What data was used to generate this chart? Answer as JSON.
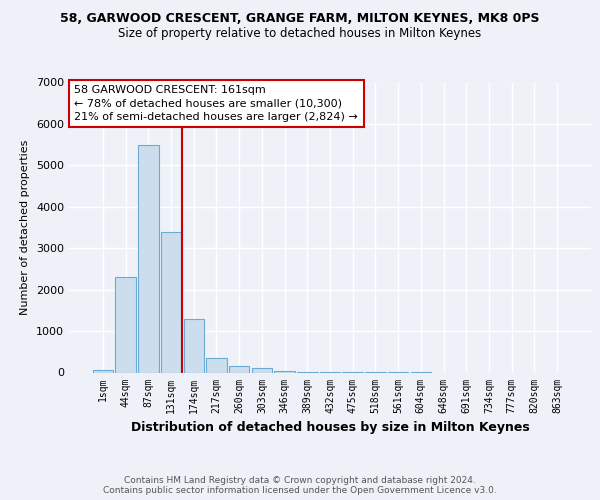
{
  "title": "58, GARWOOD CRESCENT, GRANGE FARM, MILTON KEYNES, MK8 0PS",
  "subtitle": "Size of property relative to detached houses in Milton Keynes",
  "xlabel": "Distribution of detached houses by size in Milton Keynes",
  "ylabel": "Number of detached properties",
  "bar_labels": [
    "1sqm",
    "44sqm",
    "87sqm",
    "131sqm",
    "174sqm",
    "217sqm",
    "260sqm",
    "303sqm",
    "346sqm",
    "389sqm",
    "432sqm",
    "475sqm",
    "518sqm",
    "561sqm",
    "604sqm",
    "648sqm",
    "691sqm",
    "734sqm",
    "777sqm",
    "820sqm",
    "863sqm"
  ],
  "bar_values": [
    50,
    2300,
    5500,
    3400,
    1300,
    350,
    150,
    100,
    30,
    10,
    5,
    3,
    2,
    1,
    1,
    0,
    0,
    0,
    0,
    0,
    0
  ],
  "bar_color": "#ccdded",
  "bar_edge_color": "#6aaad4",
  "background_color": "#eef2f8",
  "grid_color": "#ffffff",
  "red_line_x": 3.5,
  "annotation_text": "58 GARWOOD CRESCENT: 161sqm\n← 78% of detached houses are smaller (10,300)\n21% of semi-detached houses are larger (2,824) →",
  "annotation_box_color": "#ffffff",
  "annotation_box_edge": "#cc0000",
  "red_line_color": "#cc0000",
  "footer_text": "Contains HM Land Registry data © Crown copyright and database right 2024.\nContains public sector information licensed under the Open Government Licence v3.0.",
  "ylim": [
    0,
    7000
  ],
  "yticks": [
    0,
    1000,
    2000,
    3000,
    4000,
    5000,
    6000,
    7000
  ]
}
